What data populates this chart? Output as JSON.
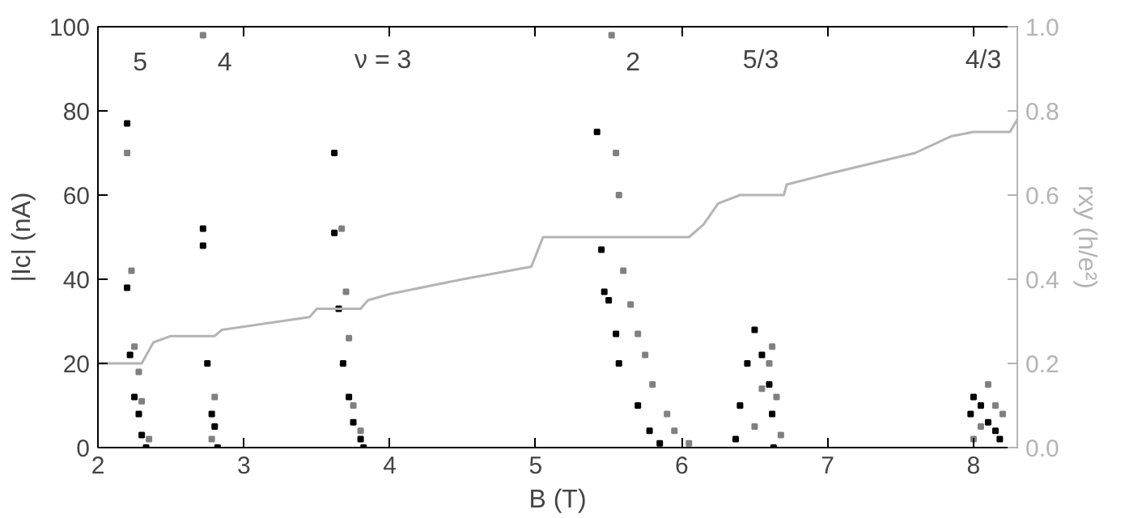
{
  "chart_data": {
    "type": "scatter",
    "xlabel": "B (T)",
    "ylabel": "|Ic| (nA)",
    "y2label": "rxy (h/e²)",
    "xlim": [
      2,
      8.3
    ],
    "xticks": [
      2,
      3,
      4,
      5,
      6,
      7,
      8
    ],
    "ylim": [
      0,
      100
    ],
    "yticks": [
      0,
      20,
      40,
      60,
      80,
      100
    ],
    "y2lim": [
      0,
      1
    ],
    "y2ticks": [
      {
        "value": 0,
        "label": "0.0"
      },
      {
        "value": 0.2,
        "label": "0.2"
      },
      {
        "value": 0.4,
        "label": "0.4"
      },
      {
        "value": 0.6,
        "label": "0.6"
      },
      {
        "value": 0.8,
        "label": "0.8"
      },
      {
        "value": 1,
        "label": "1.0"
      }
    ],
    "grid": false,
    "series": [
      {
        "marker": "square",
        "color": "#000000",
        "x": [
          2.2,
          2.2,
          2.22,
          2.25,
          2.28,
          2.3,
          2.33,
          2.72,
          2.72,
          2.75,
          2.78,
          2.8,
          2.82,
          3.62,
          3.62,
          3.65,
          3.68,
          3.72,
          3.75,
          3.8,
          3.82,
          5.42,
          5.45,
          5.47,
          5.5,
          5.55,
          5.57,
          5.7,
          5.78,
          5.85,
          6.37,
          6.4,
          6.45,
          6.5,
          6.55,
          6.6,
          6.62,
          6.63,
          7.98,
          8.0,
          8.05,
          8.1,
          8.15,
          8.18
        ],
        "values": [
          77,
          38,
          22,
          12,
          8,
          3,
          0,
          52,
          48,
          20,
          8,
          5,
          0,
          70,
          51,
          33,
          20,
          12,
          6,
          2,
          0,
          75,
          47,
          37,
          35,
          27,
          20,
          10,
          4,
          1,
          2,
          10,
          20,
          28,
          22,
          15,
          8,
          0,
          8,
          12,
          10,
          6,
          4,
          2
        ]
      },
      {
        "marker": "square",
        "color": "#808080",
        "x": [
          2.2,
          2.23,
          2.25,
          2.28,
          2.3,
          2.35,
          2.72,
          2.78,
          2.8,
          3.67,
          3.7,
          3.72,
          3.75,
          3.8,
          5.52,
          5.55,
          5.57,
          5.6,
          5.65,
          5.7,
          5.75,
          5.8,
          5.9,
          5.95,
          6.05,
          6.5,
          6.55,
          6.6,
          6.62,
          6.65,
          6.68,
          8.0,
          8.05,
          8.1,
          8.15,
          8.2
        ],
        "values": [
          70,
          42,
          24,
          18,
          11,
          2,
          98,
          2,
          12,
          52,
          37,
          26,
          10,
          4,
          98,
          70,
          60,
          42,
          34,
          27,
          22,
          15,
          8,
          4,
          1,
          5,
          14,
          20,
          24,
          12,
          3,
          2,
          5,
          15,
          10,
          8
        ]
      },
      {
        "type": "line",
        "axis": "y2",
        "color": "#b4b4b4",
        "x": [
          2.0,
          2.3,
          2.38,
          2.5,
          2.8,
          2.85,
          3.45,
          3.5,
          3.8,
          3.85,
          4.0,
          4.5,
          4.97,
          5.05,
          6.05,
          6.15,
          6.25,
          6.4,
          6.7,
          6.72,
          7.0,
          7.6,
          7.85,
          8.0,
          8.25,
          8.3
        ],
        "values": [
          0.2,
          0.2,
          0.25,
          0.265,
          0.265,
          0.28,
          0.31,
          0.33,
          0.33,
          0.35,
          0.365,
          0.4,
          0.43,
          0.5,
          0.5,
          0.53,
          0.58,
          0.6,
          0.6,
          0.625,
          0.65,
          0.7,
          0.74,
          0.75,
          0.75,
          0.78
        ]
      }
    ],
    "annotations": [
      "5",
      "4",
      "ν = 3",
      "2",
      "5/3",
      "4/3"
    ]
  }
}
